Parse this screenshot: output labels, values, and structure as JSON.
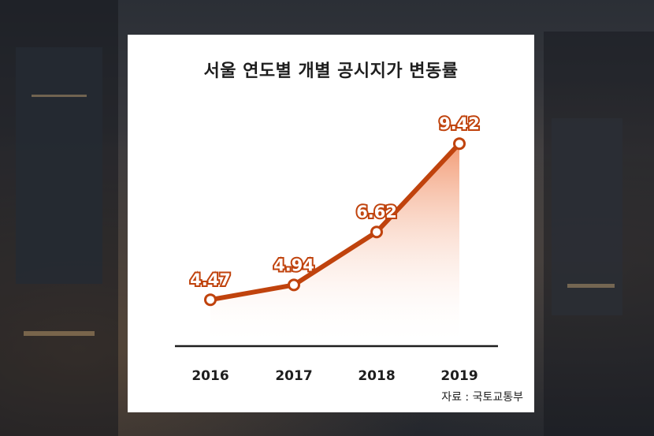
{
  "chart_data": {
    "type": "line",
    "title": "서울 연도별 개별 공시지가 변동률",
    "categories": [
      "2016",
      "2017",
      "2018",
      "2019"
    ],
    "series": [
      {
        "values": [
          4.47,
          4.94,
          6.62,
          9.42
        ]
      }
    ],
    "data_labels": [
      "4.47",
      "4.94",
      "6.62",
      "9.42"
    ],
    "source": "자료 : 국토교통부",
    "ylim": [
      3.0,
      10.0
    ],
    "grid": false,
    "colors": {
      "line": "#c0430d",
      "fill_top": "#f4a07a",
      "axis": "#1e1e1e"
    }
  }
}
